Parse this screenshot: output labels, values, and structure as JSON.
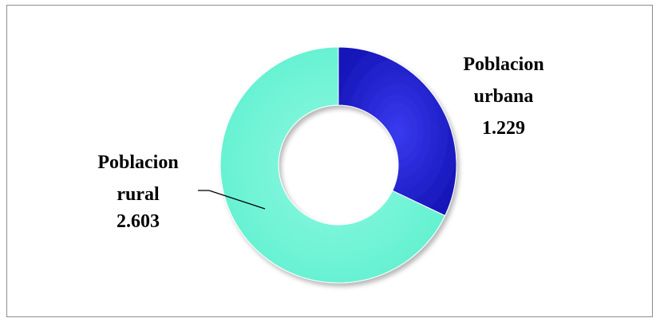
{
  "chart_data": {
    "type": "donut",
    "title": "",
    "slices": [
      {
        "label": "Poblacion urbana",
        "value": 1229,
        "value_label": "1.229",
        "color": "#1f1fd6"
      },
      {
        "label": "Poblacion rural",
        "value": 2603,
        "value_label": "2.603",
        "color": "#6ff5d6"
      }
    ],
    "labels": {
      "urbana": [
        "Poblacion",
        "urbana",
        "1.229"
      ],
      "rural": [
        "Poblacion",
        "rural",
        "2.603"
      ]
    },
    "legend": "none"
  }
}
